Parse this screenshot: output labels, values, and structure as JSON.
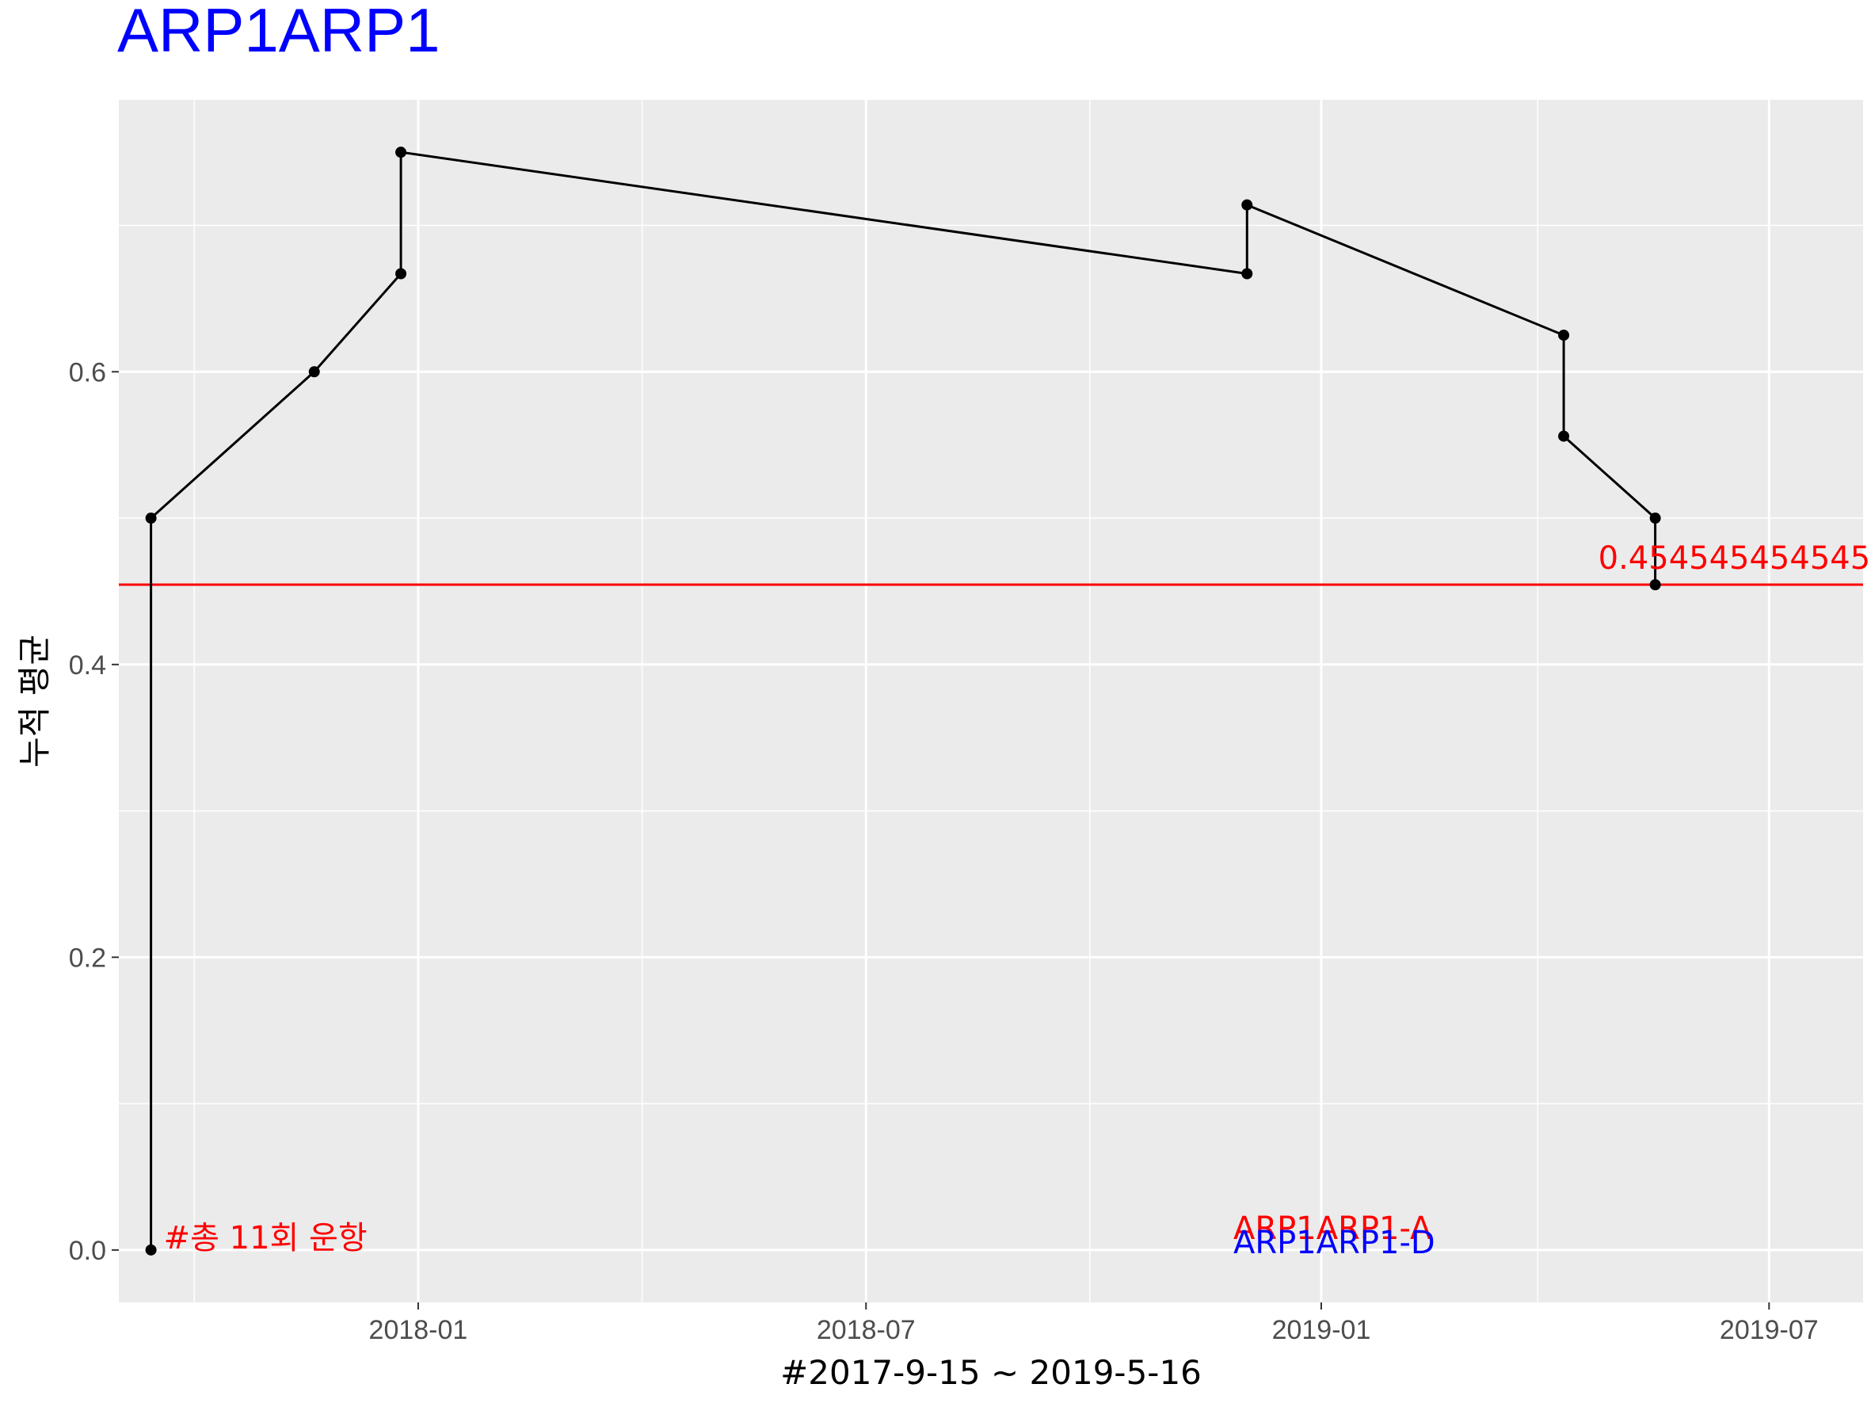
{
  "chart_data": {
    "type": "line",
    "title": "ARP1ARP1",
    "xlabel": "#2017-9-15 ~ 2019-5-16",
    "ylabel": "누적 평균",
    "x_type": "date",
    "xlim": [
      "2017-09-02",
      "2019-08-08"
    ],
    "ylim": [
      -0.0358,
      0.7858
    ],
    "x_ticks": [
      {
        "value": "2018-01-01",
        "label": "2018-01"
      },
      {
        "value": "2018-07-01",
        "label": "2018-07"
      },
      {
        "value": "2019-01-01",
        "label": "2019-01"
      },
      {
        "value": "2019-07-01",
        "label": "2019-07"
      }
    ],
    "y_ticks": [
      {
        "value": 0.0,
        "label": "0.0"
      },
      {
        "value": 0.2,
        "label": "0.2"
      },
      {
        "value": 0.4,
        "label": "0.4"
      },
      {
        "value": 0.6,
        "label": "0.6"
      }
    ],
    "series": [
      {
        "points": [
          {
            "x": "2017-09-15",
            "y": 0.0
          },
          {
            "x": "2017-09-15",
            "y": 0.5
          },
          {
            "x": "2017-11-20",
            "y": 0.6
          },
          {
            "x": "2017-12-25",
            "y": 0.667
          },
          {
            "x": "2017-12-25",
            "y": 0.75
          },
          {
            "x": "2018-12-02",
            "y": 0.667
          },
          {
            "x": "2018-12-02",
            "y": 0.714
          },
          {
            "x": "2019-04-09",
            "y": 0.625
          },
          {
            "x": "2019-04-09",
            "y": 0.556
          },
          {
            "x": "2019-05-16",
            "y": 0.5
          },
          {
            "x": "2019-05-16",
            "y": 0.4545
          }
        ]
      }
    ],
    "hline": {
      "y": 0.454545454545,
      "label": "0.454545454545"
    },
    "annotations": {
      "total": "#총 11회 운항",
      "code_a": "ARP1ARP1-A",
      "code_d": "ARP1ARP1-D"
    },
    "grid": true,
    "legend": "none",
    "colors": {
      "panel_bg": "#ebebeb",
      "grid": "#ffffff",
      "line": "#000000",
      "hline": "#ff0000",
      "title": "#0000ff",
      "annotation_red": "#ff0000",
      "annotation_blue": "#0000ff"
    }
  }
}
